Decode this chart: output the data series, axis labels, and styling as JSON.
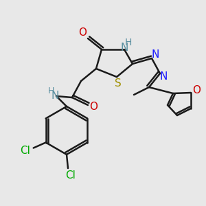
{
  "bg_color": "#e8e8e8",
  "bond_color": "#1a1a1a",
  "bond_width": 1.8,
  "figsize": [
    3.0,
    3.0
  ],
  "dpi": 100,
  "xlim": [
    0,
    300
  ],
  "ylim": [
    0,
    300
  ]
}
